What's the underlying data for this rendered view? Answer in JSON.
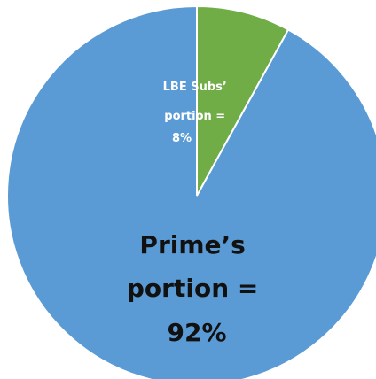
{
  "chart_data": {
    "type": "pie",
    "title": "",
    "slices": [
      {
        "label_lines": [
          "LBE Subs’",
          "portion =",
          "8%"
        ],
        "value": 8,
        "color": "#70ad47"
      },
      {
        "label_lines": [
          "Prime’s",
          "portion =",
          "92%"
        ],
        "value": 92,
        "color": "#5b9bd5"
      }
    ],
    "start_angle_deg": 0,
    "direction": "clockwise",
    "legend": "none"
  }
}
